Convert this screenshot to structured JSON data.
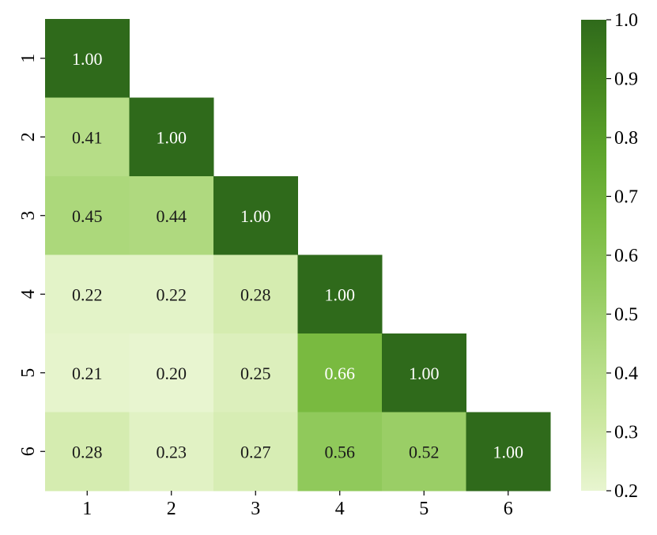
{
  "chart_data": {
    "type": "heatmap",
    "triangle": "lower",
    "x_categories": [
      "1",
      "2",
      "3",
      "4",
      "5",
      "6"
    ],
    "y_categories": [
      "1",
      "2",
      "3",
      "4",
      "5",
      "6"
    ],
    "matrix": [
      [
        1.0,
        null,
        null,
        null,
        null,
        null
      ],
      [
        0.41,
        1.0,
        null,
        null,
        null,
        null
      ],
      [
        0.45,
        0.44,
        1.0,
        null,
        null,
        null
      ],
      [
        0.22,
        0.22,
        0.28,
        1.0,
        null,
        null
      ],
      [
        0.21,
        0.2,
        0.25,
        0.66,
        1.0,
        null
      ],
      [
        0.28,
        0.23,
        0.27,
        0.56,
        0.52,
        1.0
      ]
    ],
    "value_format": "0.00",
    "colorbar": {
      "range": [
        0.2,
        1.0
      ],
      "ticks": [
        "0.2",
        "0.3",
        "0.4",
        "0.5",
        "0.6",
        "0.7",
        "0.8",
        "0.9",
        "1.0"
      ],
      "colors": [
        "#e8f5d0",
        "#cde8a2",
        "#b2db82",
        "#94cb5f",
        "#7abb41",
        "#5ea52c",
        "#46881f",
        "#2f6a1b"
      ]
    },
    "text_colors": {
      "light": "#ffffff",
      "dark": "#1a1a1a"
    },
    "title": "",
    "xlabel": "",
    "ylabel": ""
  }
}
